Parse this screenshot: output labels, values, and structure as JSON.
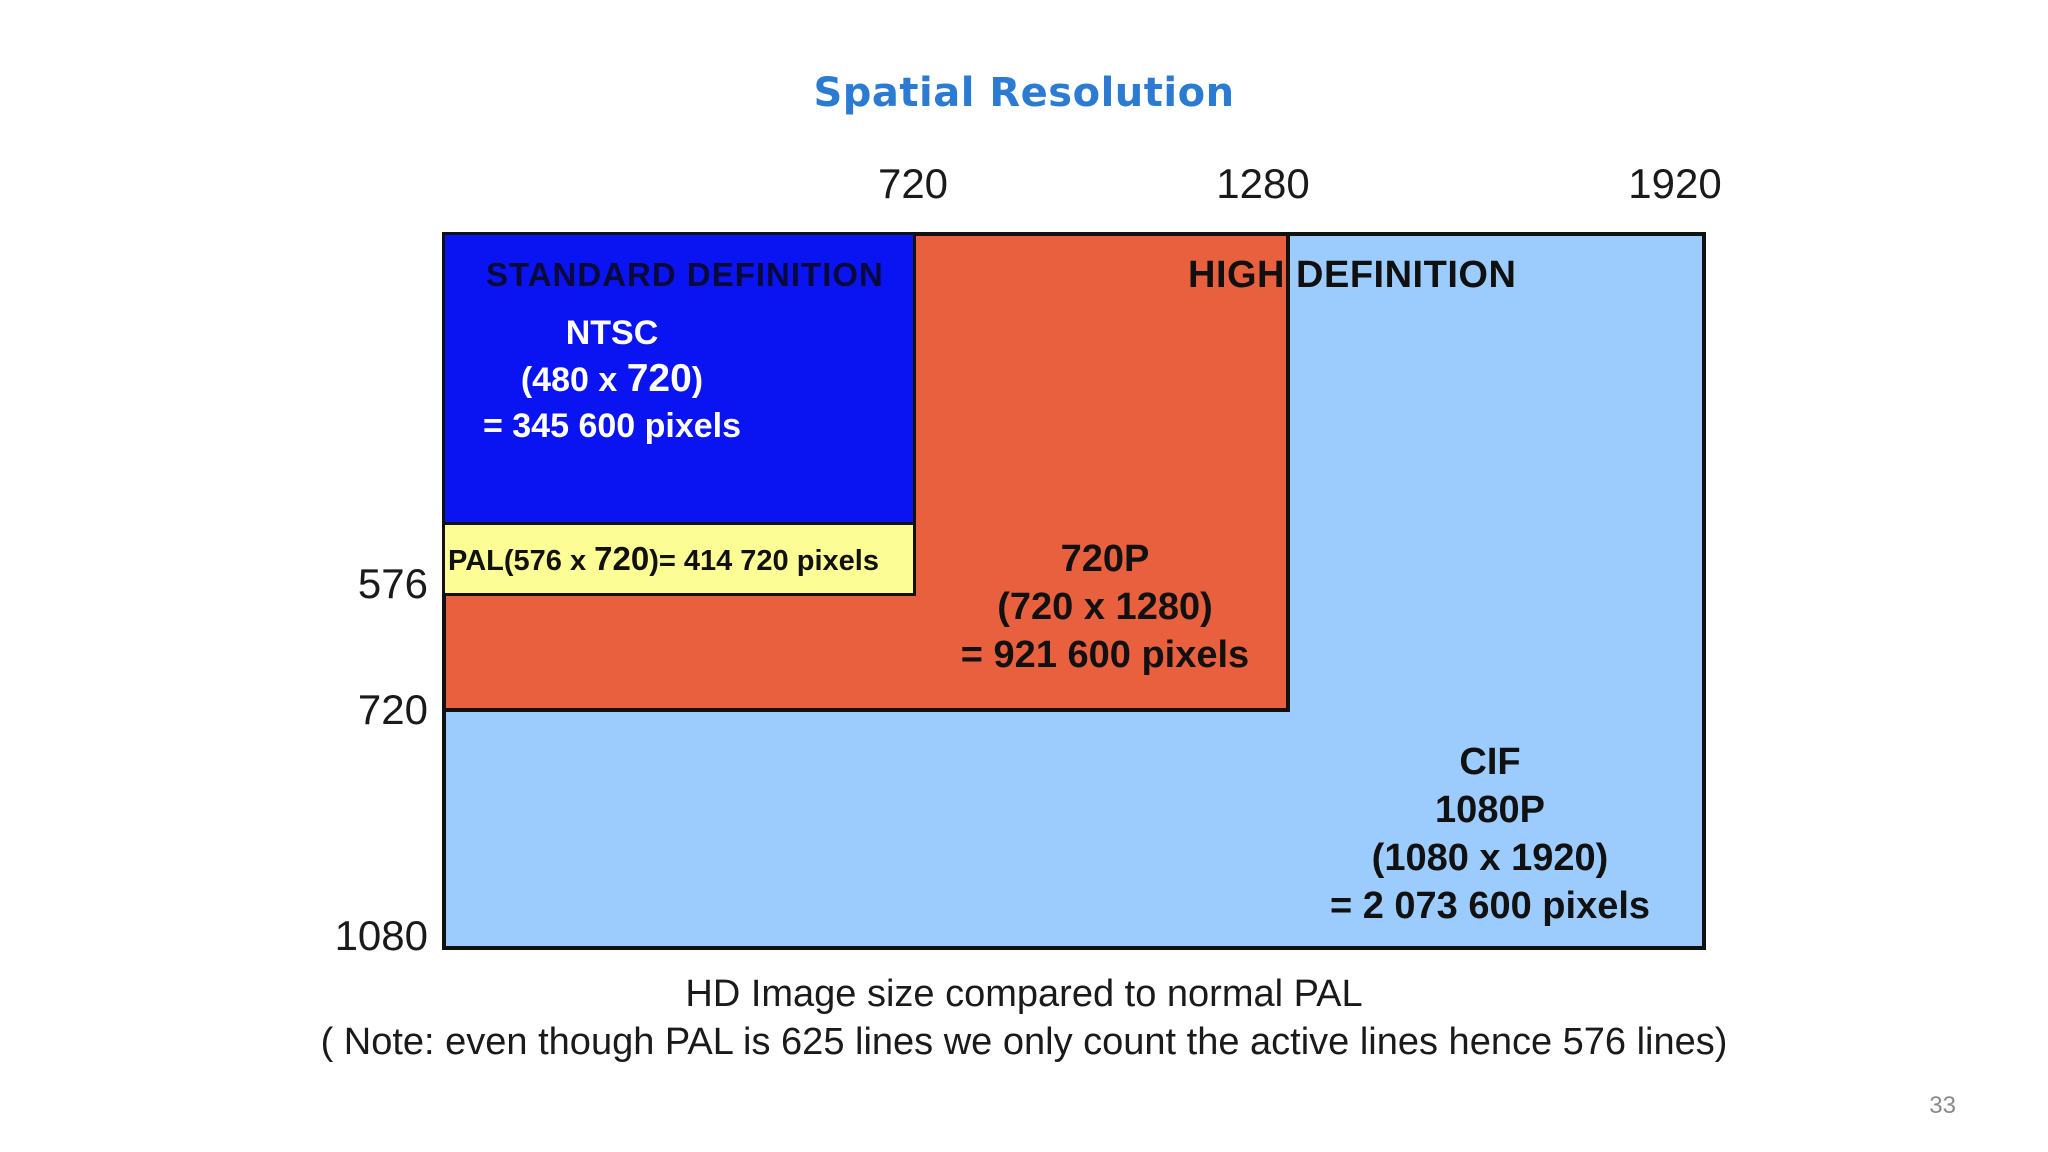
{
  "title": "Spatial Resolution",
  "column_labels": [
    "720",
    "1280",
    "1920"
  ],
  "row_labels": [
    "576",
    "720",
    "1080"
  ],
  "standard_definition": {
    "heading": "STANDARD DEFINITION",
    "ntsc_name": "NTSC",
    "ntsc_dims_pre": "(480 x ",
    "ntsc_dims_num": "720",
    "ntsc_dims_post": ")",
    "ntsc_pixels": "= 345 600 pixels",
    "pal_pre": "PAL(576 x ",
    "pal_num": "720",
    "pal_post": ")= 414 720 pixels"
  },
  "high_definition": {
    "heading": "HIGH DEFINITION",
    "hd720_name": "720P",
    "hd720_dims": "(720 x 1280)",
    "hd720_pixels": "= 921 600 pixels",
    "cif_name": "CIF",
    "cif_format": "1080P",
    "cif_dims": "(1080 x 1920)",
    "cif_pixels": "= 2 073 600 pixels"
  },
  "caption": {
    "line1": "HD Image size compared to normal PAL",
    "line2": "( Note: even though PAL is 625 lines we only count the active lines hence 576 lines)"
  },
  "page_number": "33",
  "colors": {
    "title": "#2b7bd3",
    "ntsc": "#0a14f2",
    "pal": "#fdfd96",
    "hd720": "#e9603f",
    "cif": "#9ccbfd"
  }
}
